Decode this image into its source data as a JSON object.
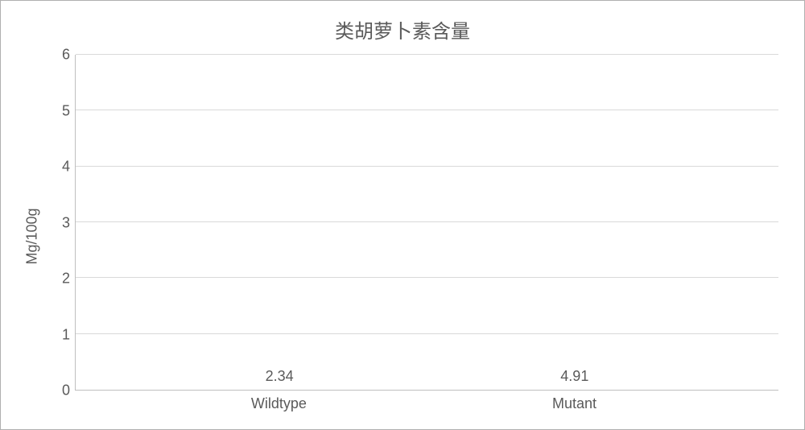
{
  "chart": {
    "type": "bar",
    "title": "类胡萝卜素含量",
    "title_fontsize": 24,
    "ylabel": "Mg/100g",
    "label_fontsize": 18,
    "ylim": [
      0,
      6
    ],
    "ytick_step": 1,
    "yticks": [
      "0",
      "1",
      "2",
      "3",
      "4",
      "5",
      "6"
    ],
    "categories": [
      "Wildtype",
      "Mutant"
    ],
    "values": [
      2.34,
      4.91
    ],
    "value_labels": [
      "2.34",
      "4.91"
    ],
    "bar_colors": [
      "#808080",
      "#808080"
    ],
    "bar_width": 0.24,
    "background_color": "#ffffff",
    "grid_color": "#d9d9d9",
    "axis_color": "#bfbfbf",
    "text_color": "#5a5a5a",
    "tick_fontsize": 18,
    "value_fontsize": 18,
    "border_color": "#b0b0b0"
  }
}
